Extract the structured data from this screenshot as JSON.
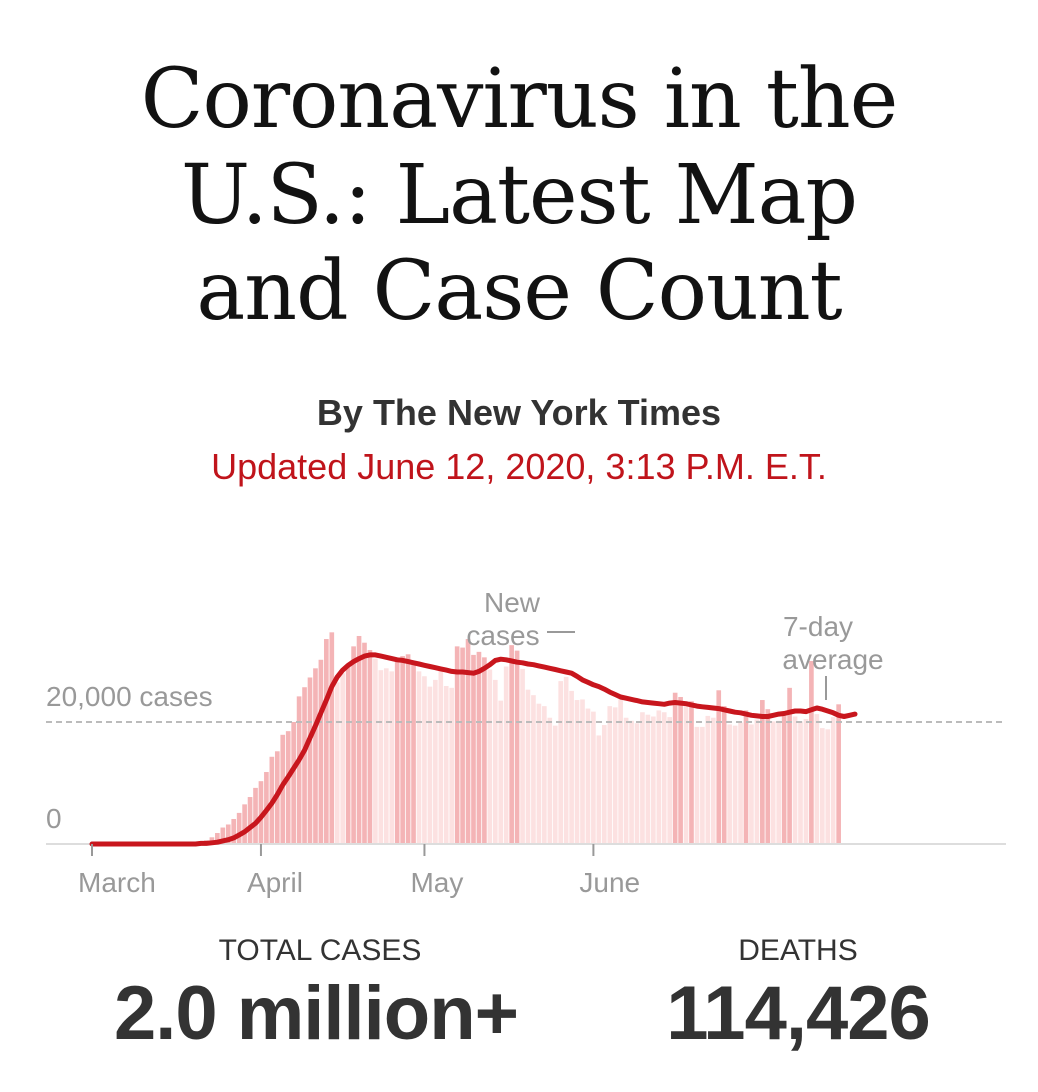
{
  "headline": {
    "line1": "Coronavirus in the",
    "line2": "U.S.: Latest Map",
    "line3": "and Case Count"
  },
  "byline": "By The New York Times",
  "updated": "Updated June 12, 2020, 3:13 P.M. E.T.",
  "colors": {
    "bar": "#f4b4b6",
    "bar_highlight": "#fce1e1",
    "line": "#c8161d",
    "updated_text": "#c0141b",
    "text": "#333333"
  },
  "chart_data": {
    "type": "bar",
    "x_tick_labels": [
      "March",
      "April",
      "May",
      "June"
    ],
    "y_tick_labels": [
      "0",
      "20,000 cases"
    ],
    "annotations": [
      {
        "text_line1": "New",
        "text_line2": "cases",
        "points_to": "bars"
      },
      {
        "text_line1": "7-day",
        "text_line2": "average",
        "points_to": "line"
      }
    ],
    "grid": "dashed reference line at 20,000",
    "start_date": "2020-03-01",
    "series": [
      {
        "type": "bar",
        "values": [
          0,
          0,
          0,
          0,
          0,
          0,
          0,
          0,
          0,
          0,
          0,
          0,
          0,
          0,
          0,
          0,
          0,
          0,
          100,
          200,
          300,
          600,
          1100,
          1800,
          2700,
          3200,
          4100,
          5100,
          6500,
          7700,
          9200,
          10300,
          11800,
          14300,
          15200,
          17900,
          18500,
          20000,
          24200,
          25700,
          27300,
          28800,
          30200,
          33600,
          34700,
          26500,
          28000,
          29400,
          32400,
          34100,
          33000,
          31800,
          30400,
          28500,
          28800,
          28300,
          30300,
          30800,
          31100,
          30000,
          28300,
          27500,
          25800,
          26900,
          28500,
          25900,
          25600,
          32400,
          32200,
          33600,
          31000,
          31500,
          30600,
          28600,
          26900,
          23500,
          29100,
          32600,
          31700,
          28700,
          25300,
          24400,
          23000,
          22600,
          20700,
          19400,
          26700,
          27400,
          25100,
          23600,
          23700,
          22200,
          21700,
          17800,
          19500,
          22600,
          22400,
          23700,
          20700,
          20200,
          19800,
          21600,
          21200,
          20900,
          21900,
          21600,
          20800,
          24800,
          24100,
          22800,
          23400,
          19200,
          19200,
          21000,
          20700,
          25200,
          22600,
          19600,
          19400,
          19900,
          21900,
          19600,
          20400,
          23600,
          22100,
          20100,
          20200,
          21600,
          25600,
          20900,
          20100,
          20500,
          30000,
          21300,
          19000,
          18800,
          20800,
          22900
        ]
      },
      {
        "type": "line",
        "values": [
          0,
          0,
          0,
          0,
          0,
          0,
          0,
          0,
          0,
          0,
          0,
          0,
          0,
          0,
          0,
          0,
          0,
          0,
          0,
          0,
          100,
          100,
          200,
          300,
          500,
          700,
          1000,
          1500,
          2000,
          2700,
          3400,
          4400,
          5500,
          6700,
          8100,
          9700,
          11000,
          12400,
          13800,
          15400,
          17400,
          19400,
          21500,
          23600,
          25800,
          27400,
          28500,
          29300,
          29900,
          30400,
          30800,
          31000,
          31000,
          30800,
          30600,
          30400,
          30200,
          30100,
          29900,
          29700,
          29500,
          29300,
          29100,
          28900,
          28700,
          28500,
          28300,
          28200,
          28200,
          28100,
          28000,
          28300,
          28800,
          29400,
          30100,
          30300,
          30200,
          30000,
          29800,
          29700,
          29500,
          29400,
          29200,
          29000,
          28800,
          28600,
          28400,
          28200,
          28000,
          27500,
          26900,
          26500,
          26100,
          25800,
          25400,
          24900,
          24500,
          24100,
          23900,
          23700,
          23500,
          23300,
          23200,
          23100,
          23000,
          22900,
          23100,
          23200,
          23100,
          23000,
          22800,
          22600,
          22500,
          22400,
          22300,
          22200,
          22000,
          21800,
          21600,
          21500,
          21300,
          21100,
          21000,
          20900,
          20900,
          21100,
          21300,
          21400,
          21600,
          21800,
          21800,
          21700,
          22000,
          22300,
          22100,
          21800,
          21500,
          21100,
          20900,
          21100,
          21300
        ]
      }
    ]
  },
  "stats": {
    "cases_label": "TOTAL CASES",
    "cases_value": "2.0 million+",
    "deaths_label": "DEATHS",
    "deaths_value": "114,426"
  }
}
